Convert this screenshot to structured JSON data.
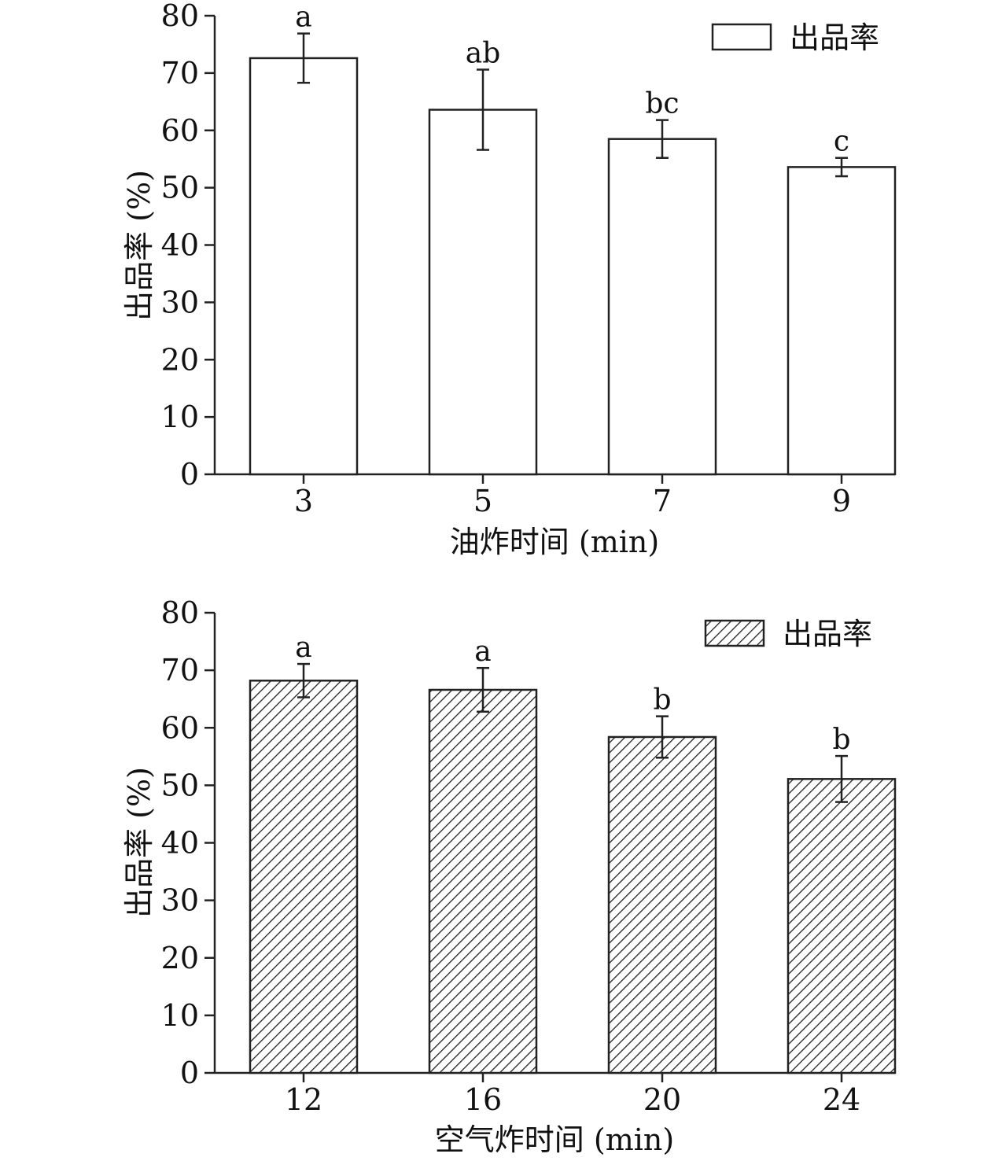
{
  "chart_data": [
    {
      "type": "bar",
      "categories": [
        "3",
        "5",
        "7",
        "9"
      ],
      "series": [
        {
          "name": "出品率",
          "values": [
            72.6,
            63.6,
            58.5,
            53.6
          ],
          "errors": [
            4.3,
            7.0,
            3.3,
            1.6
          ],
          "significance": [
            "a",
            "ab",
            "bc",
            "c"
          ]
        }
      ],
      "xlabel": "油炸时间 (min)",
      "ylabel": "出品率 (%)",
      "ylim": [
        0,
        80
      ],
      "yticks": [
        "0",
        "10",
        "20",
        "30",
        "40",
        "50",
        "60",
        "70",
        "80"
      ],
      "fill": "white",
      "legend_position": "top-right",
      "grid": false
    },
    {
      "type": "bar",
      "categories": [
        "12",
        "16",
        "20",
        "24"
      ],
      "series": [
        {
          "name": "出品率",
          "values": [
            68.2,
            66.6,
            58.4,
            51.1
          ],
          "errors": [
            2.9,
            3.8,
            3.6,
            4.0
          ],
          "significance": [
            "a",
            "a",
            "b",
            "b"
          ]
        }
      ],
      "xlabel": "空气炸时间 (min)",
      "ylabel": "出品率 (%)",
      "ylim": [
        0,
        80
      ],
      "yticks": [
        "0",
        "10",
        "20",
        "30",
        "40",
        "50",
        "60",
        "70",
        "80"
      ],
      "fill": "hatched",
      "legend_position": "top-right",
      "grid": false
    }
  ]
}
